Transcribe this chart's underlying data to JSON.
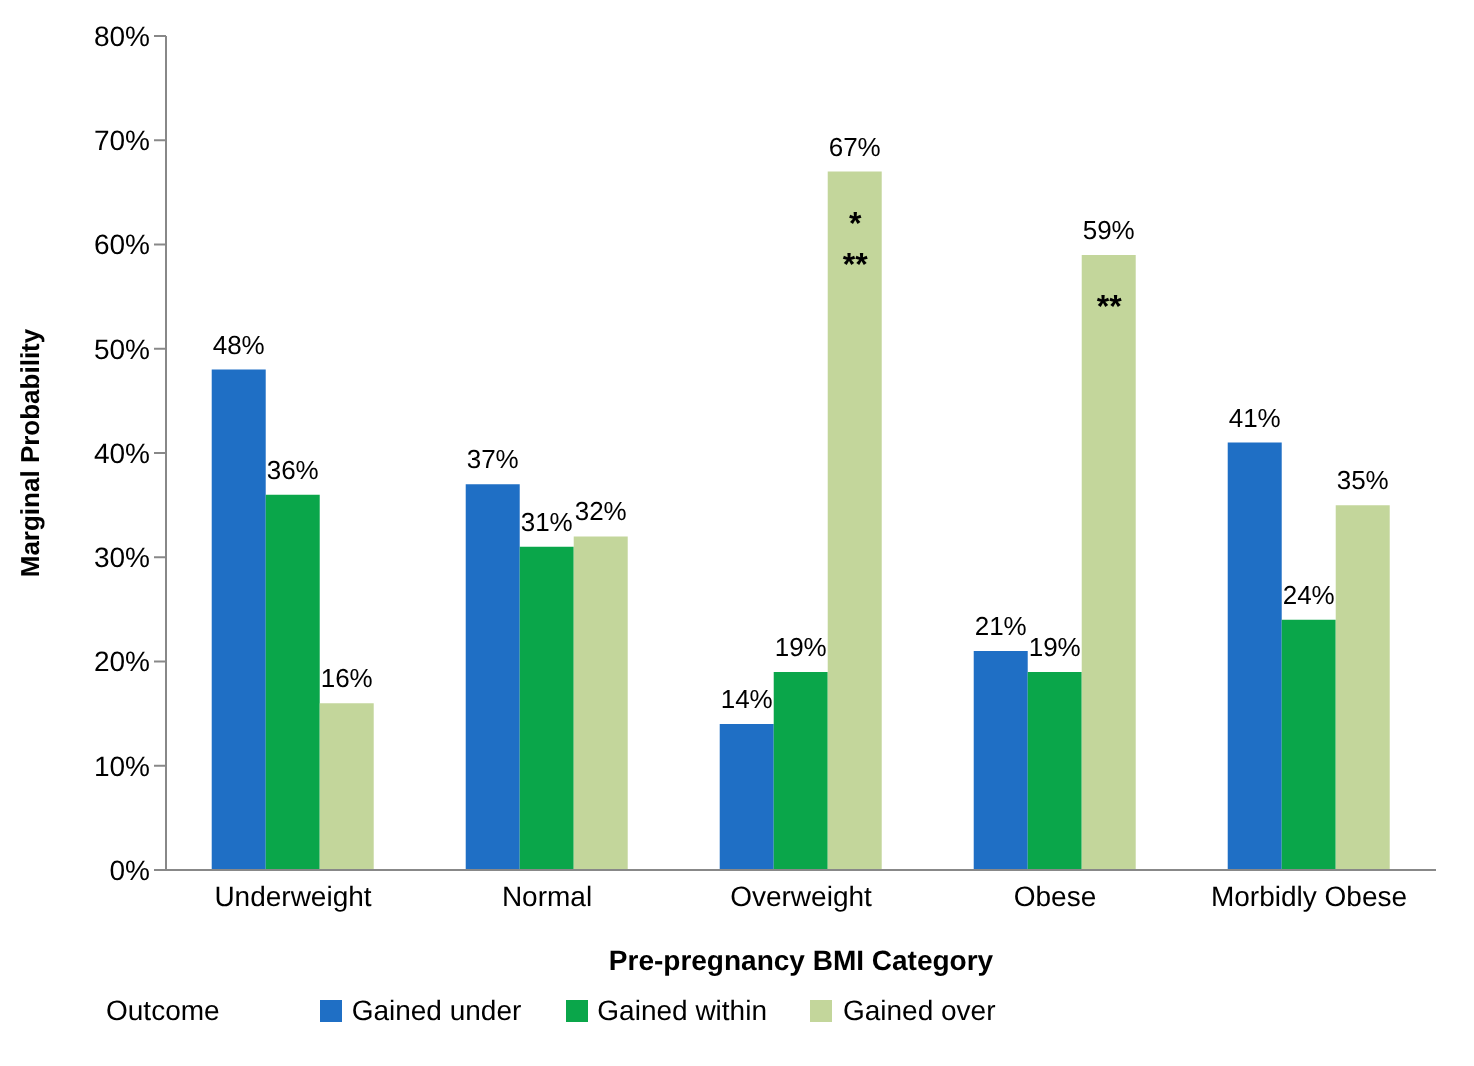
{
  "chart_data": {
    "type": "bar",
    "xlabel": "Pre-pregnancy BMI Category",
    "ylabel": "Marginal Probability",
    "legend_title": "Outcome",
    "categories": [
      "Underweight",
      "Normal",
      "Overweight",
      "Obese",
      "Morbidly Obese"
    ],
    "series": [
      {
        "name": "Gained under",
        "color": "#1f6fc5",
        "values": [
          48,
          37,
          14,
          21,
          41
        ],
        "value_labels": [
          "48%",
          "37%",
          "14%",
          "21%",
          "41%"
        ]
      },
      {
        "name": "Gained within",
        "color": "#0aa64a",
        "values": [
          36,
          31,
          19,
          19,
          24
        ],
        "value_labels": [
          "36%",
          "31%",
          "19%",
          "19%",
          "24%"
        ]
      },
      {
        "name": "Gained over",
        "color": "#c3d69b",
        "values": [
          16,
          32,
          67,
          59,
          35
        ],
        "value_labels": [
          "16%",
          "32%",
          "67%",
          "59%",
          "35%"
        ]
      }
    ],
    "ylim": [
      0,
      80
    ],
    "yticks": [
      {
        "value": 0,
        "label": "0%"
      },
      {
        "value": 10,
        "label": "10%"
      },
      {
        "value": 20,
        "label": "20%"
      },
      {
        "value": 30,
        "label": "30%"
      },
      {
        "value": 40,
        "label": "40%"
      },
      {
        "value": 50,
        "label": "50%"
      },
      {
        "value": 60,
        "label": "60%"
      },
      {
        "value": 70,
        "label": "70%"
      },
      {
        "value": 80,
        "label": "80%"
      }
    ],
    "grid": false,
    "legend": "bottom",
    "annotations": [
      "*",
      "**",
      "**"
    ]
  }
}
